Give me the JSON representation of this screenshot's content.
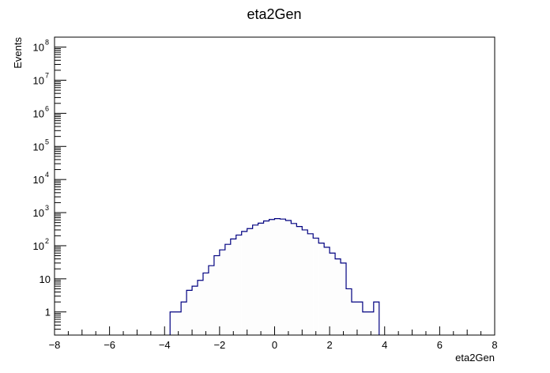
{
  "chart_data": {
    "type": "histogram",
    "title": "eta2Gen",
    "xlabel": "eta2Gen",
    "ylabel": "Events",
    "xlim": [
      -8,
      8
    ],
    "ylim": [
      0.2,
      200000000
    ],
    "log_y": true,
    "grid": false,
    "legend": "none",
    "x_major_ticks": [
      -8,
      -6,
      -4,
      -2,
      0,
      2,
      4,
      6,
      8
    ],
    "x_tick_labels": [
      "−8",
      "−6",
      "−4",
      "−2",
      "0",
      "2",
      "4",
      "6",
      "8"
    ],
    "y_tick_labels": [
      {
        "value": 1,
        "base": "1",
        "exp": ""
      },
      {
        "value": 10,
        "base": "10",
        "exp": ""
      },
      {
        "value": 100,
        "base": "10",
        "exp": "2"
      },
      {
        "value": 1000,
        "base": "10",
        "exp": "3"
      },
      {
        "value": 10000,
        "base": "10",
        "exp": "4"
      },
      {
        "value": 100000,
        "base": "10",
        "exp": "5"
      },
      {
        "value": 1000000,
        "base": "10",
        "exp": "6"
      },
      {
        "value": 10000000,
        "base": "10",
        "exp": "7"
      },
      {
        "value": 100000000,
        "base": "10",
        "exp": "8"
      }
    ],
    "bin_width": 0.2,
    "bins": [
      {
        "x0": -3.8,
        "value": 1
      },
      {
        "x0": -3.6,
        "value": 1
      },
      {
        "x0": -3.4,
        "value": 2
      },
      {
        "x0": -3.2,
        "value": 4.5
      },
      {
        "x0": -3.0,
        "value": 6
      },
      {
        "x0": -2.8,
        "value": 9
      },
      {
        "x0": -2.6,
        "value": 15
      },
      {
        "x0": -2.4,
        "value": 25
      },
      {
        "x0": -2.2,
        "value": 50
      },
      {
        "x0": -2.0,
        "value": 75
      },
      {
        "x0": -1.8,
        "value": 110
      },
      {
        "x0": -1.6,
        "value": 160
      },
      {
        "x0": -1.4,
        "value": 210
      },
      {
        "x0": -1.2,
        "value": 270
      },
      {
        "x0": -1.0,
        "value": 330
      },
      {
        "x0": -0.8,
        "value": 420
      },
      {
        "x0": -0.6,
        "value": 480
      },
      {
        "x0": -0.4,
        "value": 560
      },
      {
        "x0": -0.2,
        "value": 620
      },
      {
        "x0": 0.0,
        "value": 660
      },
      {
        "x0": 0.2,
        "value": 640
      },
      {
        "x0": 0.4,
        "value": 580
      },
      {
        "x0": 0.6,
        "value": 470
      },
      {
        "x0": 0.8,
        "value": 380
      },
      {
        "x0": 1.0,
        "value": 300
      },
      {
        "x0": 1.2,
        "value": 230
      },
      {
        "x0": 1.4,
        "value": 170
      },
      {
        "x0": 1.6,
        "value": 120
      },
      {
        "x0": 1.8,
        "value": 90
      },
      {
        "x0": 2.0,
        "value": 60
      },
      {
        "x0": 2.2,
        "value": 40
      },
      {
        "x0": 2.4,
        "value": 30
      },
      {
        "x0": 2.6,
        "value": 5
      },
      {
        "x0": 2.8,
        "value": 2
      },
      {
        "x0": 3.0,
        "value": 2
      },
      {
        "x0": 3.2,
        "value": 1
      },
      {
        "x0": 3.4,
        "value": 1
      },
      {
        "x0": 3.6,
        "value": 2
      }
    ],
    "line_color": "#000080",
    "fill_color": "#fdfdfd"
  }
}
